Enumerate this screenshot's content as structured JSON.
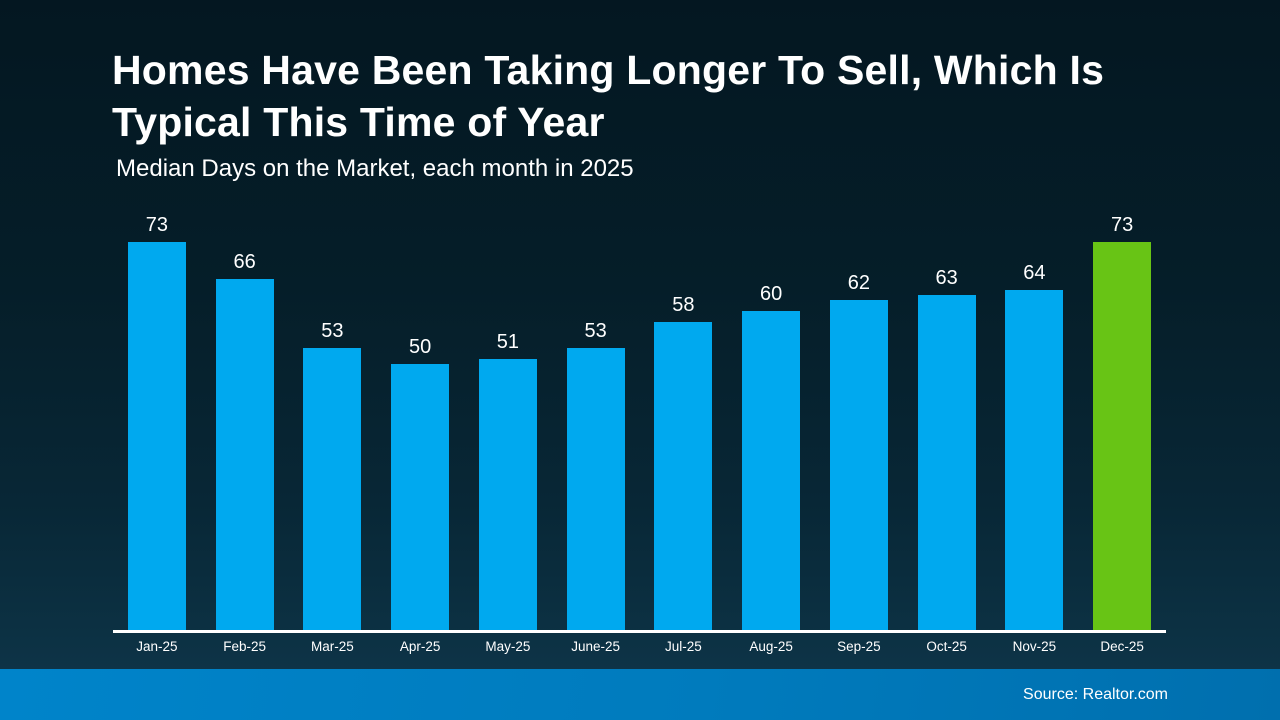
{
  "header": {
    "title": "Homes Have Been Taking Longer To Sell, Which Is\nTypical This Time of Year",
    "subtitle": "Median Days on the Market, each month in 2025"
  },
  "footer": {
    "source": "Source: Realtor.com"
  },
  "colors": {
    "background_top": "#041721",
    "background_bottom": "#0e3448",
    "bar_default": "#00a9ef",
    "bar_highlight": "#68c415",
    "axis_line": "#ffffff",
    "footer_bar": "#0079c1",
    "text": "#ffffff"
  },
  "chart_data": {
    "type": "bar",
    "title": "Homes Have Been Taking Longer To Sell, Which Is Typical This Time of Year",
    "subtitle": "Median Days on the Market, each month in 2025",
    "categories": [
      "Jan-25",
      "Feb-25",
      "Mar-25",
      "Apr-25",
      "May-25",
      "June-25",
      "Jul-25",
      "Aug-25",
      "Sep-25",
      "Oct-25",
      "Nov-25",
      "Dec-25"
    ],
    "values": [
      73,
      66,
      53,
      50,
      51,
      53,
      58,
      60,
      62,
      63,
      64,
      73
    ],
    "series_name": "Median Days on the Market",
    "highlight_index": 11,
    "xlabel": "",
    "ylabel": "Median Days on the Market",
    "ylim": [
      0,
      80
    ],
    "grid": false,
    "y_axis_visible": false,
    "value_labels": "above bars",
    "legend_position": "none",
    "source": "Source: Realtor.com"
  }
}
